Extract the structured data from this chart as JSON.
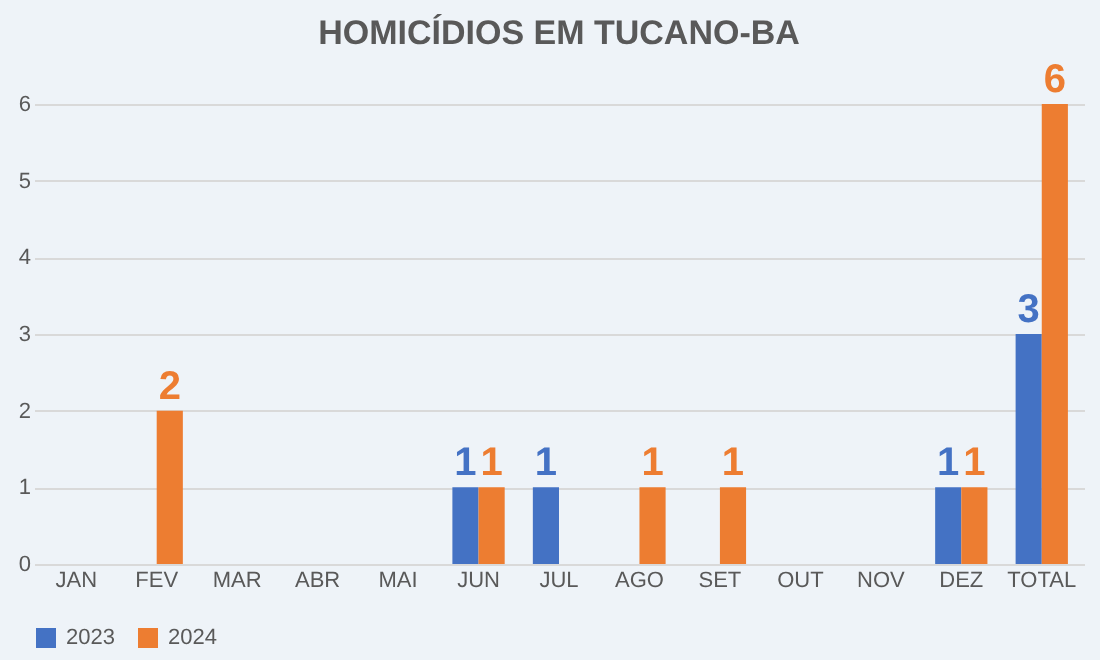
{
  "chart_data": {
    "type": "bar",
    "title": "HOMICÍDIOS EM TUCANO-BA",
    "categories": [
      "JAN",
      "FEV",
      "MAR",
      "ABR",
      "MAI",
      "JUN",
      "JUL",
      "AGO",
      "SET",
      "OUT",
      "NOV",
      "DEZ",
      "TOTAL"
    ],
    "series": [
      {
        "name": "2023",
        "color": "#4472c4",
        "values": [
          0,
          0,
          0,
          0,
          0,
          1,
          1,
          0,
          0,
          0,
          0,
          1,
          3
        ],
        "value_labels": [
          null,
          null,
          null,
          null,
          null,
          "1",
          "1",
          null,
          null,
          null,
          null,
          "1",
          "3"
        ]
      },
      {
        "name": "2024",
        "color": "#ed7d31",
        "values": [
          0,
          2,
          0,
          0,
          0,
          1,
          0,
          1,
          1,
          0,
          0,
          1,
          6
        ],
        "value_labels": [
          null,
          "2",
          null,
          null,
          null,
          "1",
          null,
          "1",
          "1",
          null,
          null,
          "1",
          "6"
        ]
      }
    ],
    "ylim": [
      0,
      6
    ],
    "yticks": [
      0,
      1,
      2,
      3,
      4,
      5,
      6
    ],
    "grid": "y",
    "legend": "bottom"
  }
}
